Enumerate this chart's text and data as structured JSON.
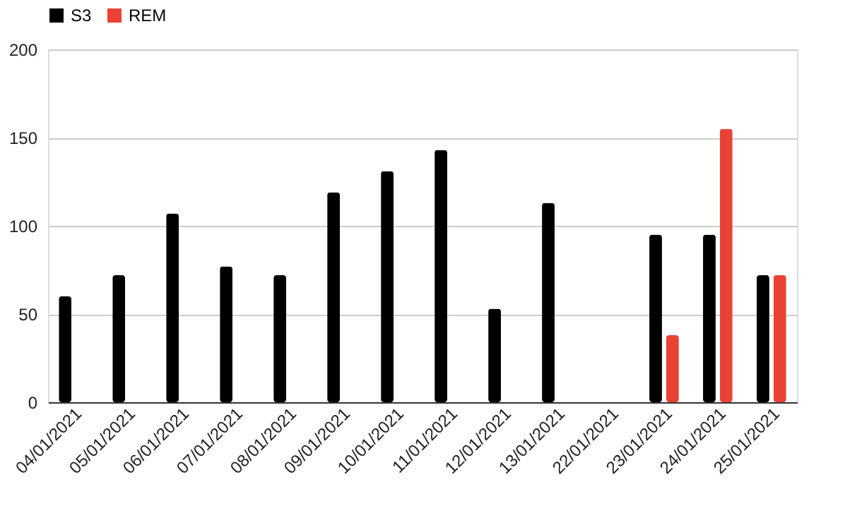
{
  "chart_data": {
    "type": "bar",
    "categories": [
      "04/01/2021",
      "05/01/2021",
      "06/01/2021",
      "07/01/2021",
      "08/01/2021",
      "09/01/2021",
      "10/01/2021",
      "11/01/2021",
      "12/01/2021",
      "13/01/2021",
      "22/01/2021",
      "23/01/2021",
      "24/01/2021",
      "25/01/2021"
    ],
    "series": [
      {
        "name": "S3",
        "color": "#000000",
        "values": [
          60,
          72,
          107,
          77,
          72,
          119,
          131,
          143,
          53,
          113,
          null,
          95,
          95,
          72
        ]
      },
      {
        "name": "REM",
        "color": "#ea4335",
        "values": [
          null,
          null,
          null,
          null,
          null,
          null,
          null,
          null,
          null,
          null,
          null,
          38,
          155,
          72
        ]
      }
    ],
    "ylim": [
      0,
      200
    ],
    "yticks": [
      0,
      50,
      100,
      150,
      200
    ],
    "grid": "y",
    "legend": "top"
  }
}
